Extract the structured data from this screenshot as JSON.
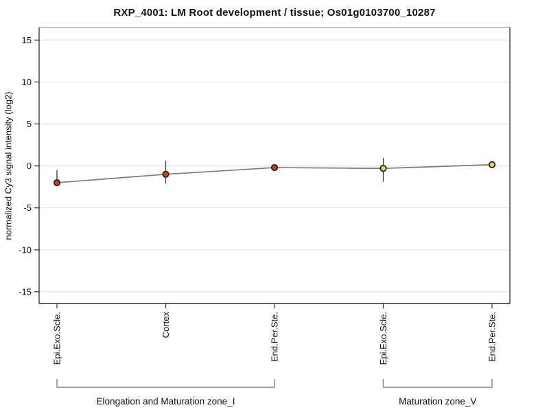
{
  "title": "RXP_4001: LM Root development / tissue; Os01g0103700_10287",
  "chart_data": {
    "type": "line",
    "title": "RXP_4001: LM Root development / tissue; Os01g0103700_10287",
    "xlabel": "",
    "ylabel": "normalized Cy3 signal intensity (log2)",
    "ylim": [
      -16.4,
      16.5
    ],
    "yticks": [
      15,
      10,
      5,
      0,
      -5,
      -10,
      -15
    ],
    "grid": true,
    "legend": "none",
    "background": "#ffffff",
    "categories": [
      "Epi.Exo.Scle.",
      "Cortex",
      "End.Per.Ste.",
      "Epi.Exo.Scle.",
      "End.Per.Ste."
    ],
    "points": [
      {
        "label": "Epi.Exo.Scle.",
        "group": "Elongation and Maturation zone_I",
        "value": -2.0,
        "err_low": -2.4,
        "err_high": -0.5,
        "color": "#c44a08"
      },
      {
        "label": "Cortex",
        "group": "Elongation and Maturation zone_I",
        "value": -1.0,
        "err_low": -2.1,
        "err_high": 0.6,
        "color": "#c44a08"
      },
      {
        "label": "End.Per.Ste.",
        "group": "Elongation and Maturation zone_I",
        "value": -0.2,
        "err_low": null,
        "err_high": null,
        "color": "#c44a08"
      },
      {
        "label": "Epi.Exo.Scle.",
        "group": "Maturation zone_V",
        "value": -0.3,
        "err_low": -1.9,
        "err_high": 0.95,
        "color": "#d6d55e"
      },
      {
        "label": "End.Per.Ste.",
        "group": "Maturation zone_V",
        "value": 0.15,
        "err_low": null,
        "err_high": null,
        "color": "#d6d55e"
      }
    ],
    "groups": [
      {
        "label": "Elongation and Maturation zone_I",
        "span": [
          0,
          2
        ]
      },
      {
        "label": "Maturation zone_V",
        "span": [
          3,
          4
        ]
      }
    ],
    "colors": {
      "series_line": "#7a7a7a",
      "error_bar": "#3a3a3a",
      "marker_stroke": "#26130a",
      "grid_line": "#e3e3e3",
      "axis_dark": "#2b2b2b",
      "axis_top": "#999999",
      "bracket": "#808080",
      "text": "#111111"
    }
  }
}
